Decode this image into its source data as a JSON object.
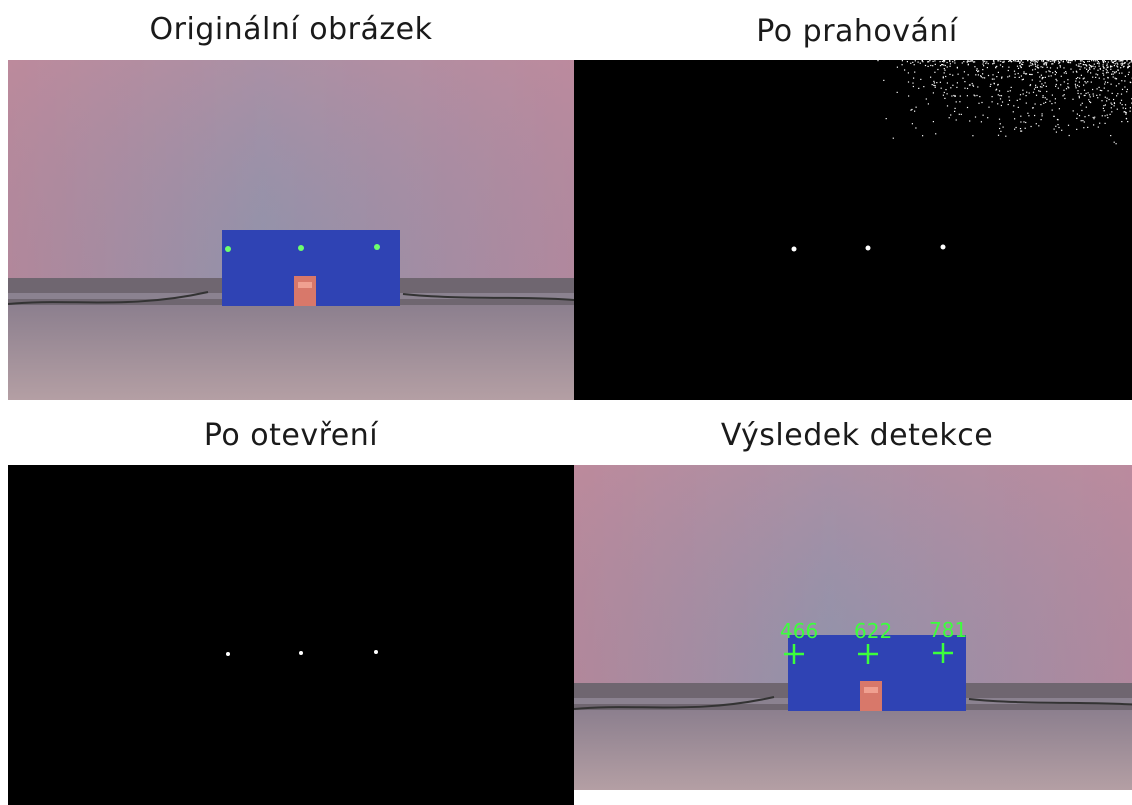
{
  "panels": [
    {
      "title": "Originální obrázek",
      "kind": "photo"
    },
    {
      "title": "Po prahování",
      "kind": "threshold"
    },
    {
      "title": "Po otevření",
      "kind": "opened"
    },
    {
      "title": "Výsledek detekce",
      "kind": "detection"
    }
  ],
  "detections": [
    {
      "label": "466"
    },
    {
      "label": "622"
    },
    {
      "label": "781"
    }
  ],
  "colors": {
    "wall_top": "#b27f93",
    "wall_mid": "#8a8ea6",
    "floor": "#a9979c",
    "board": "#2f43b4",
    "led": "#6dff6d",
    "marker": "#3cff3c",
    "mask_bg": "#000000",
    "mask_fg": "#ffffff"
  }
}
